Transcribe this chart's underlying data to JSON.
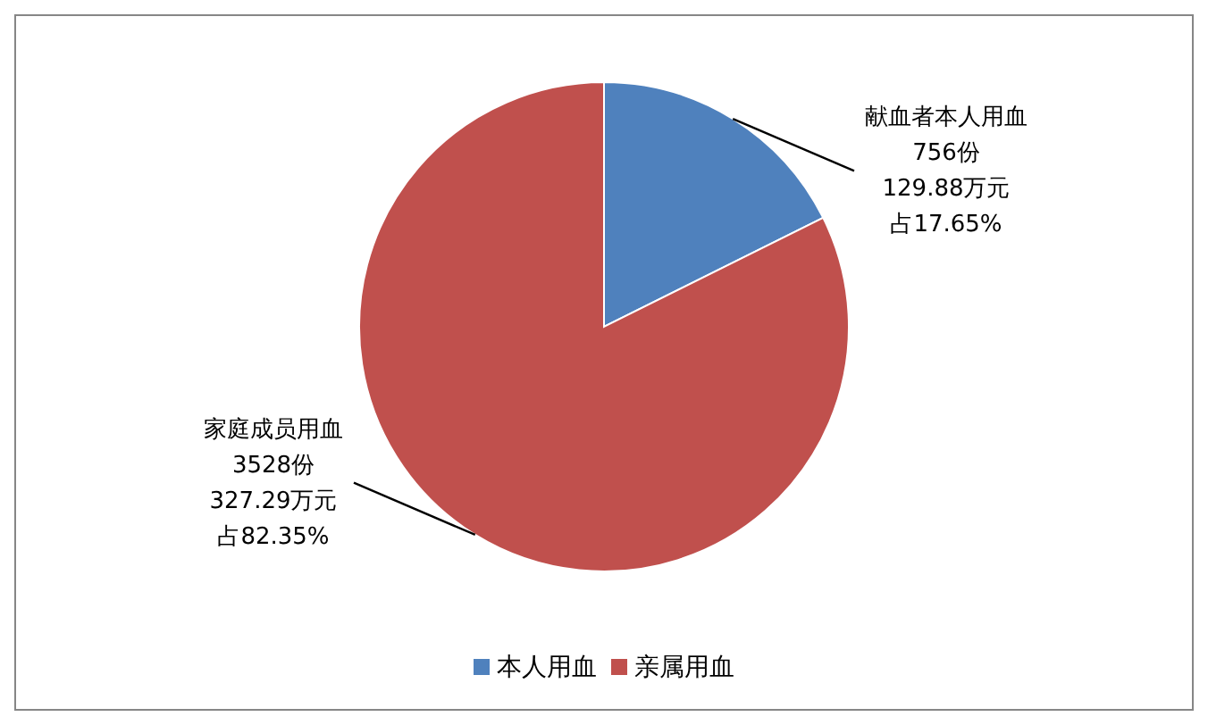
{
  "chart_data": {
    "type": "pie",
    "categories": [
      "本人用血",
      "亲属用血"
    ],
    "values": [
      756,
      3528
    ],
    "colors": [
      "#4f81bd",
      "#c0504d"
    ],
    "value_labels": [
      "献血者本人用血\n756份\n129.88万元占17.65%",
      "家庭成员用血\n3528份\n327.29万元占82.35%"
    ],
    "legend": "bottom"
  }
}
